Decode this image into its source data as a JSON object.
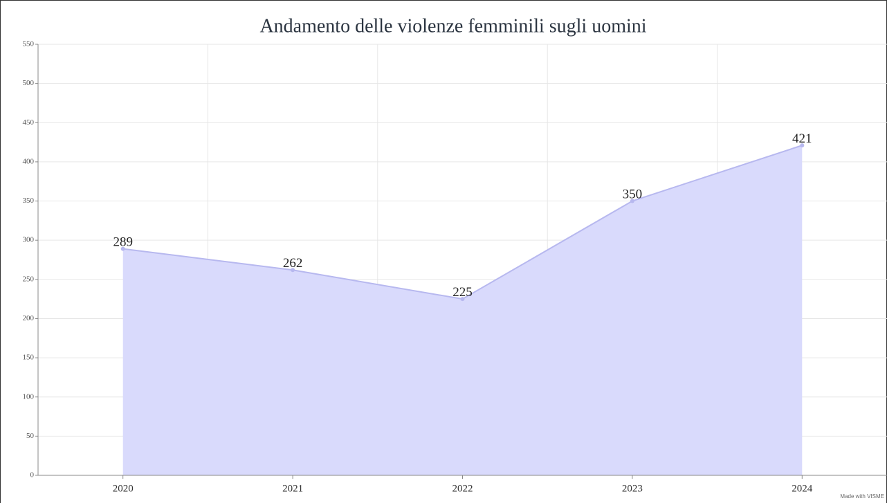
{
  "chart_data": {
    "type": "area",
    "title": "Andamento delle violenze femminili sugli uomini",
    "footnote": "Made with VISME",
    "categories": [
      "2020",
      "2021",
      "2022",
      "2023",
      "2024"
    ],
    "values": [
      289,
      262,
      225,
      350,
      421
    ],
    "color": "#d9dafc",
    "line_color": "#b7b8ef",
    "ylim": [
      0,
      550
    ],
    "yticks": [
      0,
      50,
      100,
      150,
      200,
      250,
      300,
      350,
      400,
      450,
      500,
      550
    ],
    "grid": true
  }
}
